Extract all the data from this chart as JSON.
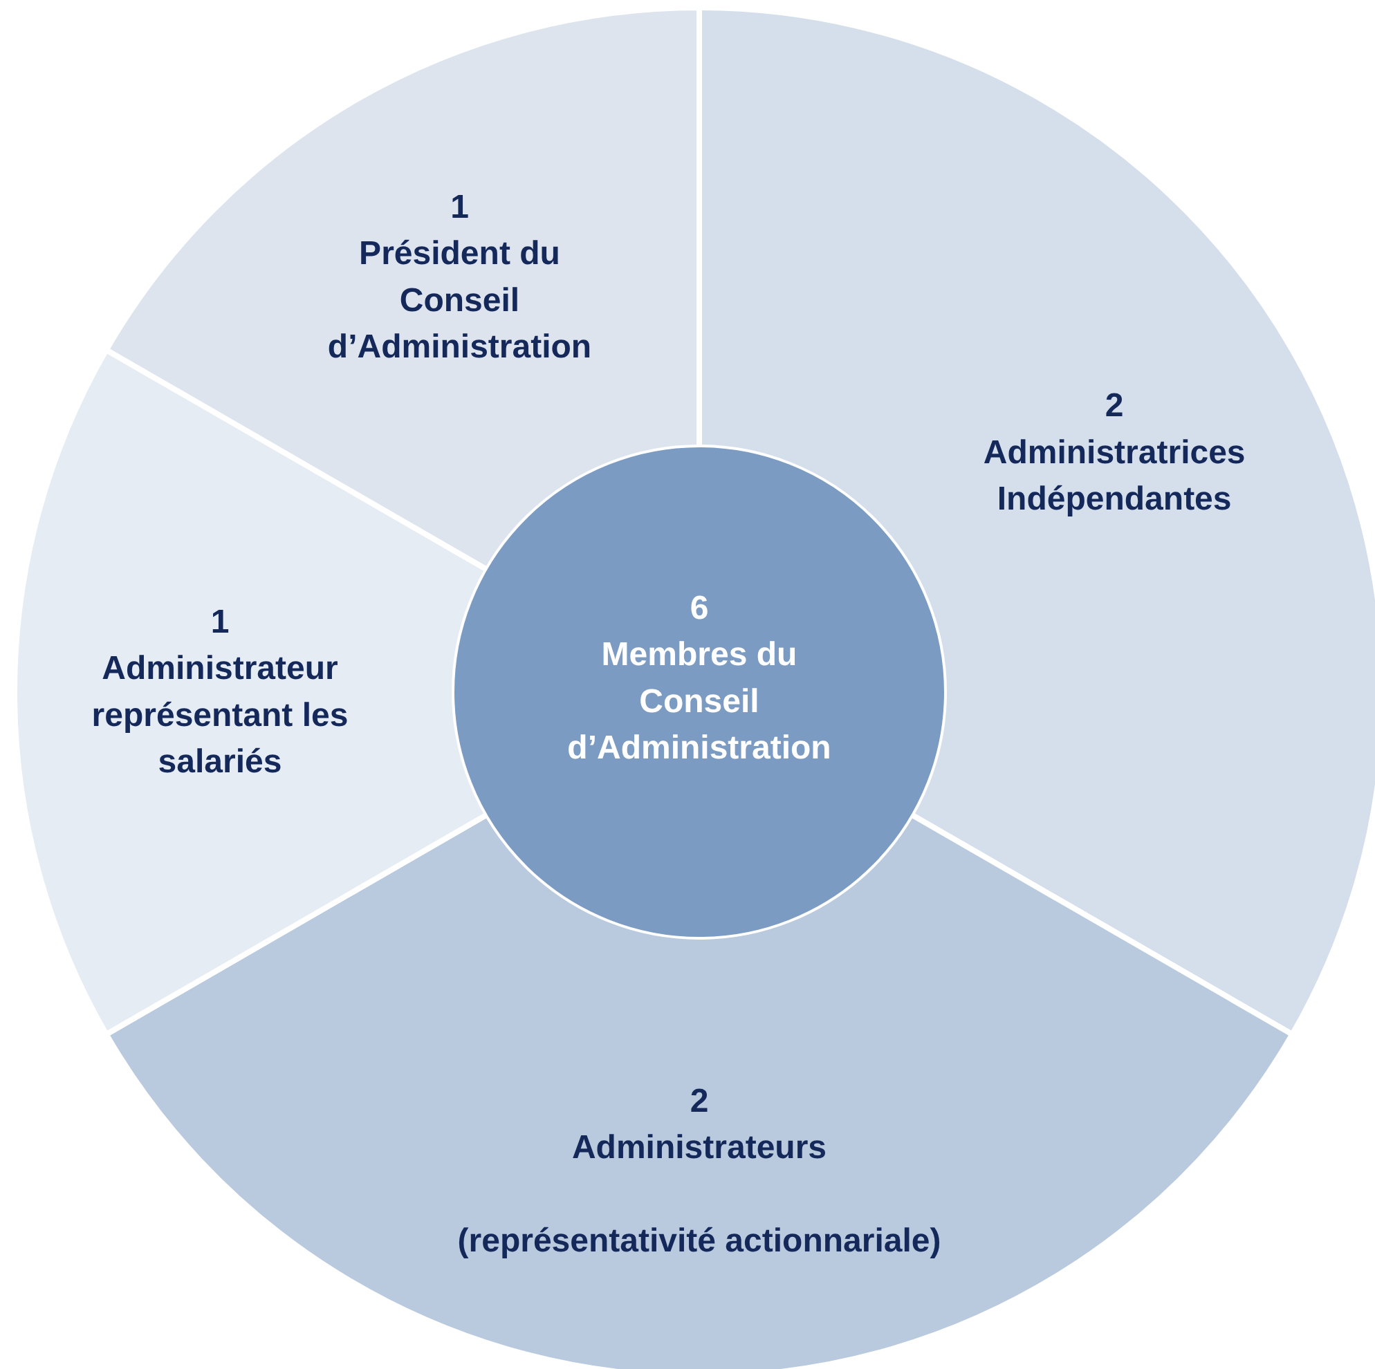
{
  "chart_data": {
    "type": "donut",
    "title": "Membres du Conseil d’Administration",
    "annotations": [
      "6"
    ],
    "categories": [
      "Administratrices\nIndépendantes",
      "Administrateurs\n\n(représentativité actionnariale)",
      "Administrateur\nreprésentant les\nsalariés",
      "Président du\nConseil\nd’Administration"
    ],
    "values": [
      2,
      2,
      1,
      1
    ],
    "colors": [
      "#d5dfeb",
      "#b9cadf",
      "#e6ecf4",
      "#dde4ee"
    ],
    "data_labels": true
  }
}
